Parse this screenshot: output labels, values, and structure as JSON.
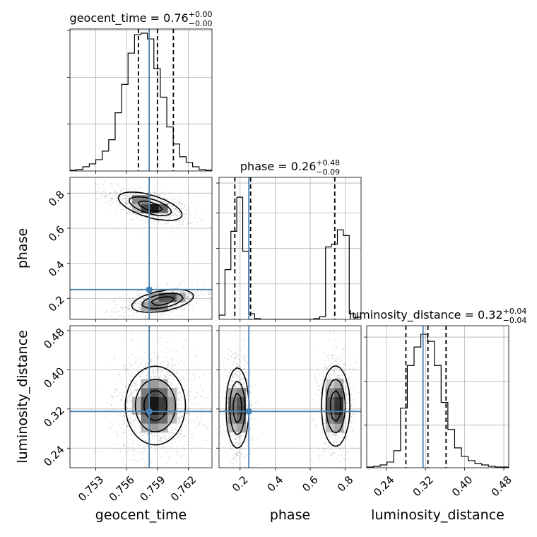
{
  "chart_data": {
    "type": "corner",
    "parameters": [
      {
        "name": "geocent_time",
        "label": "geocent_time",
        "range": [
          0.7505,
          0.7643
        ],
        "ticks": [
          0.753,
          0.756,
          0.759,
          0.762
        ],
        "tick_labels": [
          "0.753",
          "0.756",
          "0.759",
          "0.762"
        ],
        "truth": 0.7582,
        "title": "geocent_time = 0.76$^{+0.00}_{-0.00}$",
        "title_main": "geocent_time = 0.76",
        "title_plus": "+0.00",
        "title_minus": "−0.00",
        "quantiles": [
          0.75715,
          0.759,
          0.76055
        ],
        "hist_values": [
          0.5,
          1,
          3,
          5,
          8,
          14,
          22,
          41,
          61,
          83,
          96,
          97,
          93,
          72,
          52,
          31,
          19,
          10,
          6,
          3,
          1,
          0.5
        ],
        "hist_ymax": 100,
        "hist_yticks": [
          33,
          66,
          99
        ]
      },
      {
        "name": "phase",
        "label": "phase",
        "range": [
          0.08,
          0.89
        ],
        "ticks": [
          0.2,
          0.4,
          0.6,
          0.8
        ],
        "tick_labels": [
          "0.2",
          "0.4",
          "0.6",
          "0.8"
        ],
        "truth": 0.25,
        "title": "phase = 0.26$^{+0.48}_{-0.09}$",
        "title_main": "phase = 0.26",
        "title_plus": "+0.48",
        "title_minus": "−0.09",
        "quantiles": [
          0.17,
          0.26,
          0.74
        ],
        "hist_values": [
          3,
          35,
          62,
          86,
          48,
          4,
          0.5,
          0,
          0,
          0,
          0,
          0,
          0,
          0,
          0,
          0,
          0.5,
          2,
          51,
          53,
          63,
          59,
          4,
          1.5
        ],
        "hist_ymax": 100,
        "hist_yticks": [
          25,
          50,
          75,
          96
        ]
      },
      {
        "name": "luminosity_distance",
        "label": "luminosity_distance",
        "range": [
          0.2,
          0.49
        ],
        "ticks": [
          0.24,
          0.32,
          0.4,
          0.48
        ],
        "tick_labels": [
          "0.24",
          "0.32",
          "0.40",
          "0.48"
        ],
        "truth": 0.315,
        "title": "luminosity_distance = 0.32$^{+0.04}_{-0.04}$",
        "title_main": "luminosity_distance = 0.32",
        "title_plus": "+0.04",
        "title_minus": "−0.04",
        "quantiles": [
          0.28,
          0.325,
          0.362
        ],
        "hist_values": [
          0.5,
          1,
          2,
          4,
          12,
          42,
          72,
          85,
          94,
          89,
          72,
          46,
          27,
          14,
          8,
          5,
          3,
          2,
          1,
          0.5,
          0.5
        ],
        "hist_ymax": 100,
        "hist_yticks": [
          30,
          61,
          92
        ]
      }
    ],
    "pairs": [
      {
        "x": "geocent_time",
        "y": "phase",
        "blobs": [
          {
            "cx": 0.7583,
            "cy": 0.725,
            "sx": 0.00155,
            "sy": 0.04,
            "rho": -0.6,
            "w": 0.5
          },
          {
            "cx": 0.7595,
            "cy": 0.185,
            "sx": 0.0015,
            "sy": 0.032,
            "rho": 0.45,
            "w": 0.5
          }
        ]
      },
      {
        "x": "geocent_time",
        "y": "luminosity_distance",
        "blobs": [
          {
            "cx": 0.7588,
            "cy": 0.327,
            "sx": 0.00145,
            "sy": 0.04,
            "rho": 0.0,
            "w": 1.0
          }
        ]
      },
      {
        "x": "phase",
        "y": "luminosity_distance",
        "blobs": [
          {
            "cx": 0.185,
            "cy": 0.322,
            "sx": 0.032,
            "sy": 0.041,
            "rho": 0.0,
            "w": 0.5
          },
          {
            "cx": 0.745,
            "cy": 0.326,
            "sx": 0.04,
            "sy": 0.041,
            "rho": 0.0,
            "w": 0.5
          }
        ]
      }
    ],
    "grid": true,
    "truth_color": "#4682b4",
    "sample_color": "#888888"
  }
}
